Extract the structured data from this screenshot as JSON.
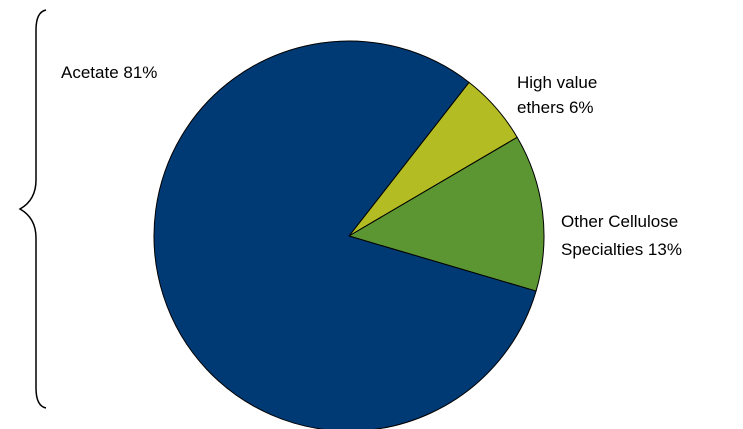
{
  "chart_data": {
    "type": "pie",
    "title": "",
    "slices": [
      {
        "label_lines": [
          "Acetate  81%"
        ],
        "value": 81,
        "color": "#003a75"
      },
      {
        "label_lines": [
          "High value",
          "ethers  6%"
        ],
        "value": 6,
        "color": "#b3bc22"
      },
      {
        "label_lines": [
          "Other Cellulose",
          "Specialties 13%"
        ],
        "value": 13,
        "color": "#5b9632"
      }
    ],
    "legend": "none",
    "annotation": "brace-left"
  }
}
